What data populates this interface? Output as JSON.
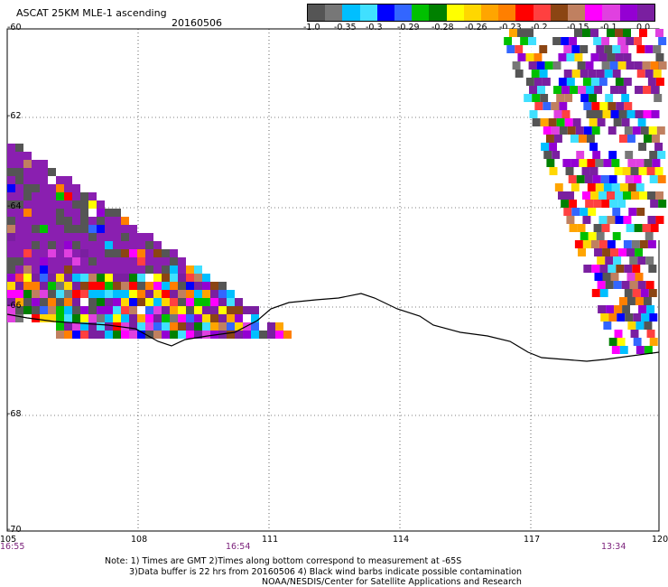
{
  "title": "ASCAT 25KM MLE-1 ascending",
  "date": "20160506",
  "legend": {
    "colors": [
      "#555555",
      "#777777",
      "#00bfff",
      "#40e0ff",
      "#0000ff",
      "#3366ff",
      "#00c000",
      "#008000",
      "#ffff00",
      "#ffd700",
      "#ffa500",
      "#ff7f00",
      "#ff0000",
      "#ff4040",
      "#8b4513",
      "#c08060",
      "#ff00ff",
      "#e040e0",
      "#9400d3",
      "#7a1fa0"
    ],
    "labels": [
      "-1.0",
      "-0.35",
      "-0.3",
      "-0.29",
      "-0.28",
      "-0.26",
      "-0.23",
      "-0.2",
      "-0.15",
      "-0.1",
      "0.0"
    ]
  },
  "map": {
    "lat_labels": [
      "-60",
      "-62",
      "-64",
      "-66",
      "-68",
      "-70"
    ],
    "lon_labels": [
      "105",
      "108",
      "111",
      "114",
      "117",
      "120"
    ],
    "time_labels": [
      "16:55",
      "16:54",
      "13:34"
    ]
  },
  "notes": {
    "line1": "Note: 1) Times are GMT 2)Times along bottom correspond to measurement at -65S",
    "line2": "3)Data buffer is 22 hrs from 20160506 4) Black wind barbs indicate possible contamination",
    "line3": "NOAA/NESDIS/Center for Satellite Applications and Research"
  }
}
